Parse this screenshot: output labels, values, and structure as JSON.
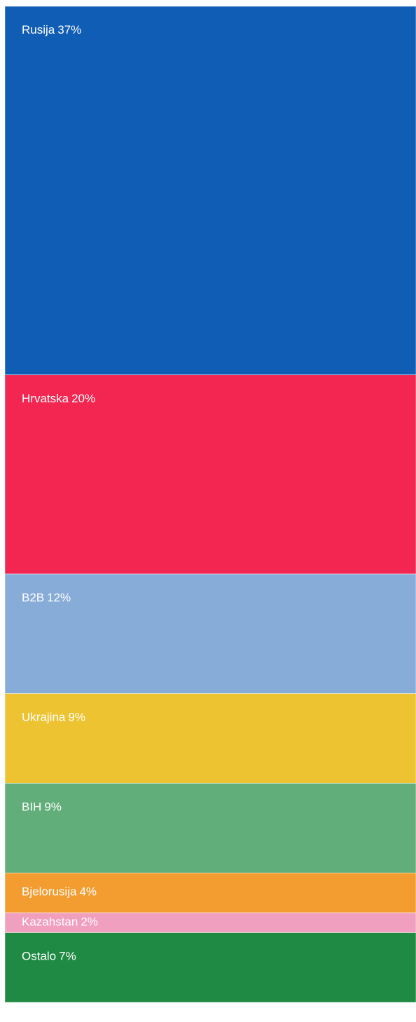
{
  "chart_data": {
    "type": "bar",
    "categories": [
      "Rusija",
      "Hrvatska",
      "B2B",
      "Ukrajina",
      "BIH",
      "Bjelorusija",
      "Kazahstan",
      "Ostalo"
    ],
    "values": [
      37,
      20,
      12,
      9,
      9,
      4,
      2,
      7
    ],
    "value_labels": [
      "37%",
      "20%",
      "12%",
      "9%",
      "9%",
      "4%",
      "2%",
      "7%"
    ],
    "colors": [
      "#105db5",
      "#f22651",
      "#88acd8",
      "#edc331",
      "#62ae7a",
      "#f39d30",
      "#f19fbe",
      "#1e8a43"
    ]
  }
}
